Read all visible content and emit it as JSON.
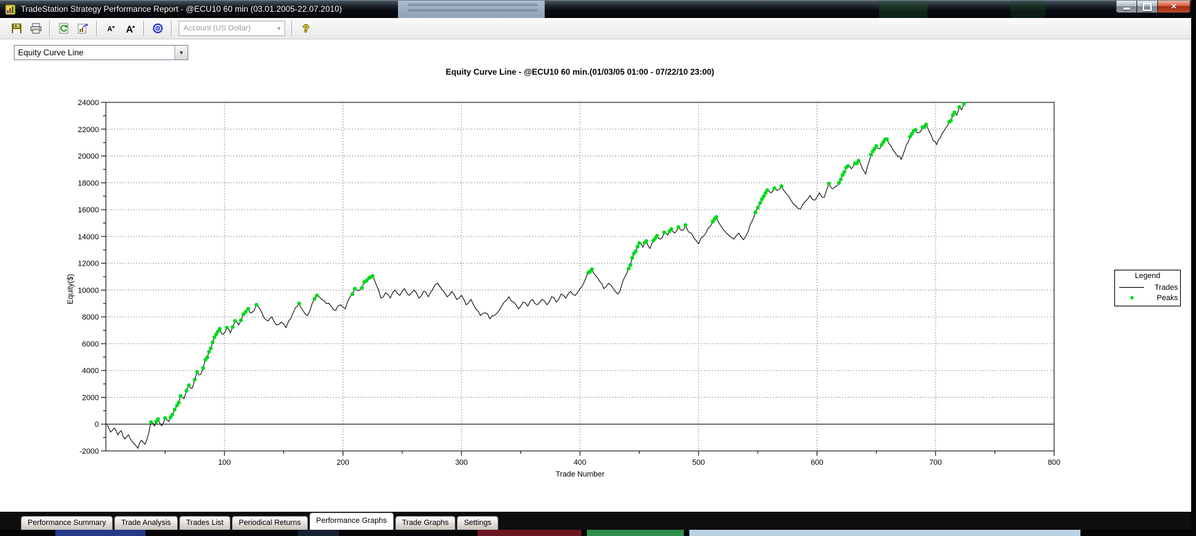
{
  "window": {
    "title": "TradeStation Strategy Performance Report - @ECU10 60 min (03.01.2005-22.07.2010)",
    "controls": {
      "minimize": "minimize",
      "maximize": "maximize",
      "close": "close"
    }
  },
  "toolbar": {
    "account_value": "Account (US Dollar)",
    "icons": [
      "save-icon",
      "print-icon",
      "refresh-icon",
      "export-icon",
      "font-decrease-icon",
      "font-increase-icon",
      "target-icon",
      "help-icon"
    ]
  },
  "selector": {
    "value": "Equity Curve Line"
  },
  "chart_data": {
    "type": "line",
    "title": "Equity Curve Line - @ECU10 60 min.(01/03/05 01:00 - 07/22/10 23:00)",
    "xlabel": "Trade Number",
    "ylabel": "Equity($)",
    "xlim": [
      0,
      800
    ],
    "ylim": [
      -2000,
      24000
    ],
    "x_ticks": [
      100,
      200,
      300,
      400,
      500,
      600,
      700,
      800
    ],
    "x_minor_step": 50,
    "y_ticks": [
      -2000,
      0,
      2000,
      4000,
      6000,
      8000,
      10000,
      12000,
      14000,
      16000,
      18000,
      20000,
      22000,
      24000
    ],
    "y_minor_step": 1000,
    "grid": "dotted, zero-line solid",
    "legend": {
      "title": "Legend",
      "entries": [
        {
          "label": "Trades",
          "type": "line",
          "color": "#000000"
        },
        {
          "label": "Peaks",
          "type": "dot",
          "color": "#00d91c"
        }
      ]
    },
    "series": [
      {
        "name": "Trades",
        "color": "#000000",
        "points": [
          [
            1,
            -50
          ],
          [
            4,
            -600
          ],
          [
            7,
            -300
          ],
          [
            10,
            -800
          ],
          [
            13,
            -500
          ],
          [
            16,
            -1100
          ],
          [
            19,
            -800
          ],
          [
            23,
            -1400
          ],
          [
            27,
            -1800
          ],
          [
            30,
            -1200
          ],
          [
            33,
            -1500
          ],
          [
            36,
            -700
          ],
          [
            38,
            150
          ],
          [
            41,
            -150
          ],
          [
            44,
            380
          ],
          [
            47,
            -120
          ],
          [
            50,
            450
          ],
          [
            53,
            200
          ],
          [
            56,
            700
          ],
          [
            60,
            1400
          ],
          [
            63,
            2100
          ],
          [
            66,
            1900
          ],
          [
            70,
            2900
          ],
          [
            73,
            2700
          ],
          [
            77,
            3900
          ],
          [
            80,
            3700
          ],
          [
            84,
            4800
          ],
          [
            87,
            5400
          ],
          [
            90,
            6100
          ],
          [
            93,
            6700
          ],
          [
            96,
            7100
          ],
          [
            99,
            6700
          ],
          [
            102,
            7200
          ],
          [
            105,
            6800
          ],
          [
            109,
            7700
          ],
          [
            112,
            7400
          ],
          [
            116,
            8200
          ],
          [
            120,
            8600
          ],
          [
            123,
            8300
          ],
          [
            127,
            8900
          ],
          [
            130,
            8600
          ],
          [
            133,
            8000
          ],
          [
            137,
            7700
          ],
          [
            140,
            8000
          ],
          [
            144,
            7400
          ],
          [
            148,
            7600
          ],
          [
            152,
            7200
          ],
          [
            156,
            7900
          ],
          [
            160,
            8700
          ],
          [
            163,
            9000
          ],
          [
            166,
            8500
          ],
          [
            170,
            8100
          ],
          [
            174,
            9000
          ],
          [
            178,
            9600
          ],
          [
            182,
            9300
          ],
          [
            186,
            9000
          ],
          [
            190,
            8800
          ],
          [
            194,
            8500
          ],
          [
            198,
            8900
          ],
          [
            202,
            8600
          ],
          [
            206,
            9500
          ],
          [
            210,
            10100
          ],
          [
            214,
            10000
          ],
          [
            218,
            10600
          ],
          [
            222,
            10900
          ],
          [
            225,
            11050
          ],
          [
            228,
            10400
          ],
          [
            232,
            9400
          ],
          [
            236,
            9800
          ],
          [
            240,
            9400
          ],
          [
            244,
            10000
          ],
          [
            248,
            9600
          ],
          [
            252,
            10100
          ],
          [
            256,
            9600
          ],
          [
            260,
            10000
          ],
          [
            264,
            9400
          ],
          [
            268,
            9900
          ],
          [
            272,
            9500
          ],
          [
            276,
            10100
          ],
          [
            280,
            10500
          ],
          [
            284,
            10000
          ],
          [
            288,
            9500
          ],
          [
            292,
            9900
          ],
          [
            296,
            9300
          ],
          [
            300,
            9600
          ],
          [
            304,
            8900
          ],
          [
            308,
            9300
          ],
          [
            312,
            8600
          ],
          [
            316,
            8100
          ],
          [
            320,
            8300
          ],
          [
            324,
            7850
          ],
          [
            328,
            8100
          ],
          [
            332,
            8500
          ],
          [
            336,
            9100
          ],
          [
            340,
            9500
          ],
          [
            344,
            9100
          ],
          [
            348,
            8600
          ],
          [
            352,
            9100
          ],
          [
            356,
            8800
          ],
          [
            360,
            9300
          ],
          [
            364,
            8900
          ],
          [
            368,
            9300
          ],
          [
            372,
            8900
          ],
          [
            376,
            9500
          ],
          [
            380,
            9100
          ],
          [
            384,
            9700
          ],
          [
            388,
            9400
          ],
          [
            392,
            9900
          ],
          [
            396,
            9600
          ],
          [
            400,
            10100
          ],
          [
            404,
            10700
          ],
          [
            407,
            11300
          ],
          [
            410,
            11550
          ],
          [
            413,
            11100
          ],
          [
            417,
            10600
          ],
          [
            420,
            10100
          ],
          [
            424,
            10500
          ],
          [
            428,
            10100
          ],
          [
            432,
            9700
          ],
          [
            435,
            10300
          ],
          [
            438,
            11000
          ],
          [
            441,
            11600
          ],
          [
            444,
            12400
          ],
          [
            447,
            12900
          ],
          [
            450,
            13500
          ],
          [
            453,
            13200
          ],
          [
            456,
            13650
          ],
          [
            459,
            13100
          ],
          [
            462,
            13700
          ],
          [
            465,
            14050
          ],
          [
            468,
            13800
          ],
          [
            471,
            14300
          ],
          [
            474,
            14100
          ],
          [
            477,
            14550
          ],
          [
            480,
            14250
          ],
          [
            483,
            14700
          ],
          [
            486,
            14450
          ],
          [
            489,
            14850
          ],
          [
            492,
            14300
          ],
          [
            496,
            13900
          ],
          [
            500,
            13450
          ],
          [
            504,
            14000
          ],
          [
            508,
            14600
          ],
          [
            512,
            15100
          ],
          [
            515,
            15450
          ],
          [
            518,
            14900
          ],
          [
            522,
            14400
          ],
          [
            526,
            14050
          ],
          [
            530,
            13800
          ],
          [
            534,
            14250
          ],
          [
            538,
            13750
          ],
          [
            542,
            14400
          ],
          [
            545,
            15100
          ],
          [
            548,
            15800
          ],
          [
            552,
            16500
          ],
          [
            555,
            17000
          ],
          [
            558,
            17450
          ],
          [
            561,
            17250
          ],
          [
            564,
            17600
          ],
          [
            567,
            17450
          ],
          [
            570,
            17750
          ],
          [
            574,
            17200
          ],
          [
            578,
            16700
          ],
          [
            582,
            16300
          ],
          [
            586,
            16050
          ],
          [
            590,
            16600
          ],
          [
            594,
            17050
          ],
          [
            598,
            16700
          ],
          [
            602,
            17250
          ],
          [
            606,
            16900
          ],
          [
            610,
            17950
          ],
          [
            613,
            17550
          ],
          [
            617,
            17800
          ],
          [
            620,
            18250
          ],
          [
            623,
            18800
          ],
          [
            626,
            19250
          ],
          [
            629,
            19050
          ],
          [
            632,
            19450
          ],
          [
            635,
            19650
          ],
          [
            638,
            19100
          ],
          [
            641,
            18650
          ],
          [
            644,
            19600
          ],
          [
            647,
            20350
          ],
          [
            650,
            20750
          ],
          [
            653,
            20550
          ],
          [
            656,
            21050
          ],
          [
            659,
            21250
          ],
          [
            662,
            20800
          ],
          [
            665,
            20350
          ],
          [
            668,
            19950
          ],
          [
            671,
            19750
          ],
          [
            674,
            20450
          ],
          [
            677,
            21050
          ],
          [
            680,
            21650
          ],
          [
            683,
            21950
          ],
          [
            686,
            21750
          ],
          [
            689,
            22150
          ],
          [
            692,
            22350
          ],
          [
            695,
            21750
          ],
          [
            698,
            21150
          ],
          [
            701,
            20850
          ],
          [
            704,
            21350
          ],
          [
            707,
            21850
          ],
          [
            710,
            22250
          ],
          [
            713,
            22650
          ],
          [
            716,
            23250
          ],
          [
            718,
            23050
          ],
          [
            720,
            23650
          ],
          [
            722,
            23450
          ],
          [
            724,
            23900
          ]
        ]
      }
    ],
    "peaks": {
      "name": "Peaks",
      "color": "#00d91c",
      "rule": "markers at new equity highs"
    }
  },
  "tabs": {
    "active_index": 4,
    "items": [
      "Performance Summary",
      "Trade Analysis",
      "Trades List",
      "Periodical Returns",
      "Performance Graphs",
      "Trade Graphs",
      "Settings"
    ]
  }
}
